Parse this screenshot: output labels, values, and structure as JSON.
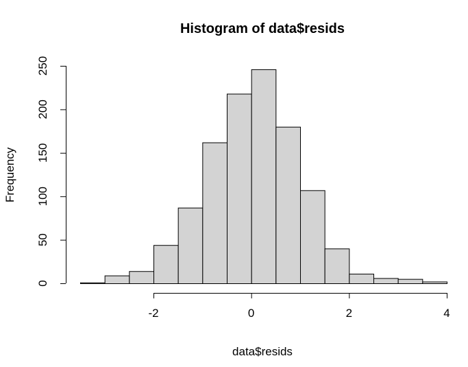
{
  "chart_data": {
    "type": "bar",
    "title": "Histogram of data$resids",
    "xlabel": "data$resids",
    "ylabel": "Frequency",
    "bins": [
      {
        "start": -3.5,
        "end": -3.0,
        "count": 1
      },
      {
        "start": -3.0,
        "end": -2.5,
        "count": 9
      },
      {
        "start": -2.5,
        "end": -2.0,
        "count": 14
      },
      {
        "start": -2.0,
        "end": -1.5,
        "count": 44
      },
      {
        "start": -1.5,
        "end": -1.0,
        "count": 87
      },
      {
        "start": -1.0,
        "end": -0.5,
        "count": 162
      },
      {
        "start": -0.5,
        "end": 0.0,
        "count": 218
      },
      {
        "start": 0.0,
        "end": 0.5,
        "count": 246
      },
      {
        "start": 0.5,
        "end": 1.0,
        "count": 180
      },
      {
        "start": 1.0,
        "end": 1.5,
        "count": 107
      },
      {
        "start": 1.5,
        "end": 2.0,
        "count": 40
      },
      {
        "start": 2.0,
        "end": 2.5,
        "count": 11
      },
      {
        "start": 2.5,
        "end": 3.0,
        "count": 6
      },
      {
        "start": 3.0,
        "end": 3.5,
        "count": 5
      },
      {
        "start": 3.5,
        "end": 4.0,
        "count": 2
      }
    ],
    "xlim": [
      -3.5,
      4.0
    ],
    "ylim": [
      0,
      250
    ],
    "x_ticks": [
      -2,
      0,
      2,
      4
    ],
    "x_tick_labels": [
      "-2",
      "0",
      "2",
      "4"
    ],
    "y_ticks": [
      0,
      50,
      100,
      150,
      200,
      250
    ],
    "y_tick_labels": [
      "0",
      "50",
      "100",
      "150",
      "200",
      "250"
    ],
    "bar_fill": "#d3d3d3",
    "bar_stroke": "#000000",
    "grid": false,
    "legend": "none"
  }
}
